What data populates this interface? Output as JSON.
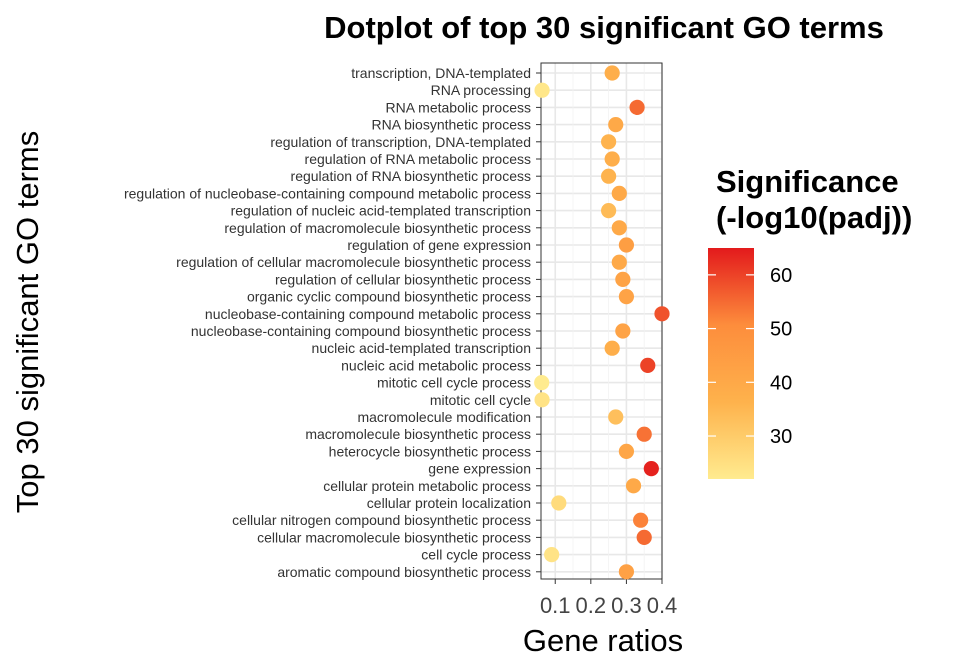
{
  "chart_data": {
    "type": "scatter",
    "title": "Dotplot of top 30 significant GO terms",
    "xlabel": "Gene ratios",
    "ylabel": "Top 30 significant GO terms",
    "xlim": [
      0.06,
      0.4
    ],
    "x_ticks": [
      "0.1",
      "0.2",
      "0.3",
      "0.4"
    ],
    "x_tick_values": [
      0.1,
      0.2,
      0.3,
      0.4
    ],
    "grid": true,
    "legend": {
      "title_line1": "Significance",
      "title_line2": "(-log10(padj))",
      "placement": "right",
      "range": [
        22,
        65
      ],
      "ticks": [
        "60",
        "50",
        "40",
        "30"
      ],
      "tick_values": [
        60,
        50,
        40,
        30
      ],
      "colors": [
        "#FFEB8F",
        "#FEB24C",
        "#FD8D3C",
        "#E31A1C"
      ]
    },
    "terms": [
      "transcription, DNA-templated",
      "RNA processing",
      "RNA metabolic process",
      "RNA biosynthetic process",
      "regulation of transcription, DNA-templated",
      "regulation of RNA metabolic process",
      "regulation of RNA biosynthetic process",
      "regulation of nucleobase-containing compound metabolic process",
      "regulation of nucleic acid-templated transcription",
      "regulation of macromolecule biosynthetic process",
      "regulation of gene expression",
      "regulation of cellular macromolecule biosynthetic process",
      "regulation of cellular biosynthetic process",
      "organic cyclic compound biosynthetic process",
      "nucleobase-containing compound metabolic process",
      "nucleobase-containing compound biosynthetic process",
      "nucleic acid-templated transcription",
      "nucleic acid metabolic process",
      "mitotic cell cycle process",
      "mitotic cell cycle",
      "macromolecule modification",
      "macromolecule biosynthetic process",
      "heterocycle biosynthetic process",
      "gene expression",
      "cellular protein metabolic process",
      "cellular protein localization",
      "cellular nitrogen compound biosynthetic process",
      "cellular macromolecule biosynthetic process",
      "cell cycle process",
      "aromatic compound biosynthetic process"
    ],
    "gene_ratios": [
      0.26,
      0.063,
      0.33,
      0.27,
      0.25,
      0.26,
      0.25,
      0.28,
      0.25,
      0.28,
      0.3,
      0.28,
      0.29,
      0.3,
      0.4,
      0.29,
      0.26,
      0.36,
      0.062,
      0.063,
      0.27,
      0.35,
      0.3,
      0.37,
      0.32,
      0.11,
      0.34,
      0.35,
      0.09,
      0.3
    ],
    "significance": [
      38,
      23,
      55,
      40,
      36,
      38,
      36,
      40,
      34,
      40,
      44,
      40,
      42,
      42,
      58,
      42,
      38,
      60,
      22,
      24,
      33,
      54,
      41,
      64,
      40,
      26,
      52,
      55,
      24,
      43
    ]
  }
}
